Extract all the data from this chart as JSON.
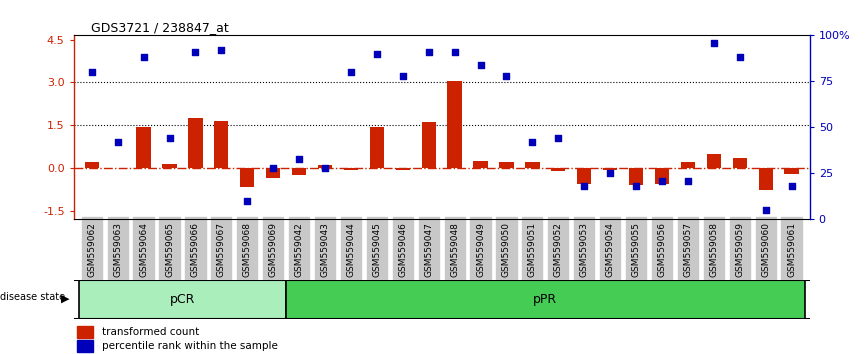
{
  "title": "GDS3721 / 238847_at",
  "samples": [
    "GSM559062",
    "GSM559063",
    "GSM559064",
    "GSM559065",
    "GSM559066",
    "GSM559067",
    "GSM559068",
    "GSM559069",
    "GSM559042",
    "GSM559043",
    "GSM559044",
    "GSM559045",
    "GSM559046",
    "GSM559047",
    "GSM559048",
    "GSM559049",
    "GSM559050",
    "GSM559051",
    "GSM559052",
    "GSM559053",
    "GSM559054",
    "GSM559055",
    "GSM559056",
    "GSM559057",
    "GSM559058",
    "GSM559059",
    "GSM559060",
    "GSM559061"
  ],
  "transformed_count": [
    0.2,
    0.0,
    1.45,
    0.15,
    1.75,
    1.65,
    -0.65,
    -0.35,
    -0.25,
    0.1,
    -0.05,
    1.45,
    -0.05,
    1.6,
    3.05,
    0.25,
    0.2,
    0.2,
    -0.1,
    -0.55,
    -0.05,
    -0.6,
    -0.55,
    0.2,
    0.5,
    0.35,
    -0.75,
    -0.2
  ],
  "percentile_rank": [
    80,
    42,
    88,
    44,
    91,
    92,
    10,
    28,
    33,
    28,
    80,
    90,
    78,
    91,
    91,
    84,
    78,
    42,
    44,
    18,
    25,
    18,
    21,
    21,
    96,
    88,
    5,
    18
  ],
  "pcr_count": 8,
  "bar_color": "#CC2200",
  "dot_color": "#0000BB",
  "pcr_color": "#AAEEBB",
  "ppr_color": "#44CC55",
  "ylim": [
    -1.8,
    4.65
  ],
  "yticks_left": [
    -1.5,
    0.0,
    1.5,
    3.0,
    4.5
  ],
  "yticks_right": [
    0,
    25,
    50,
    75,
    100
  ],
  "background_color": "#ffffff"
}
